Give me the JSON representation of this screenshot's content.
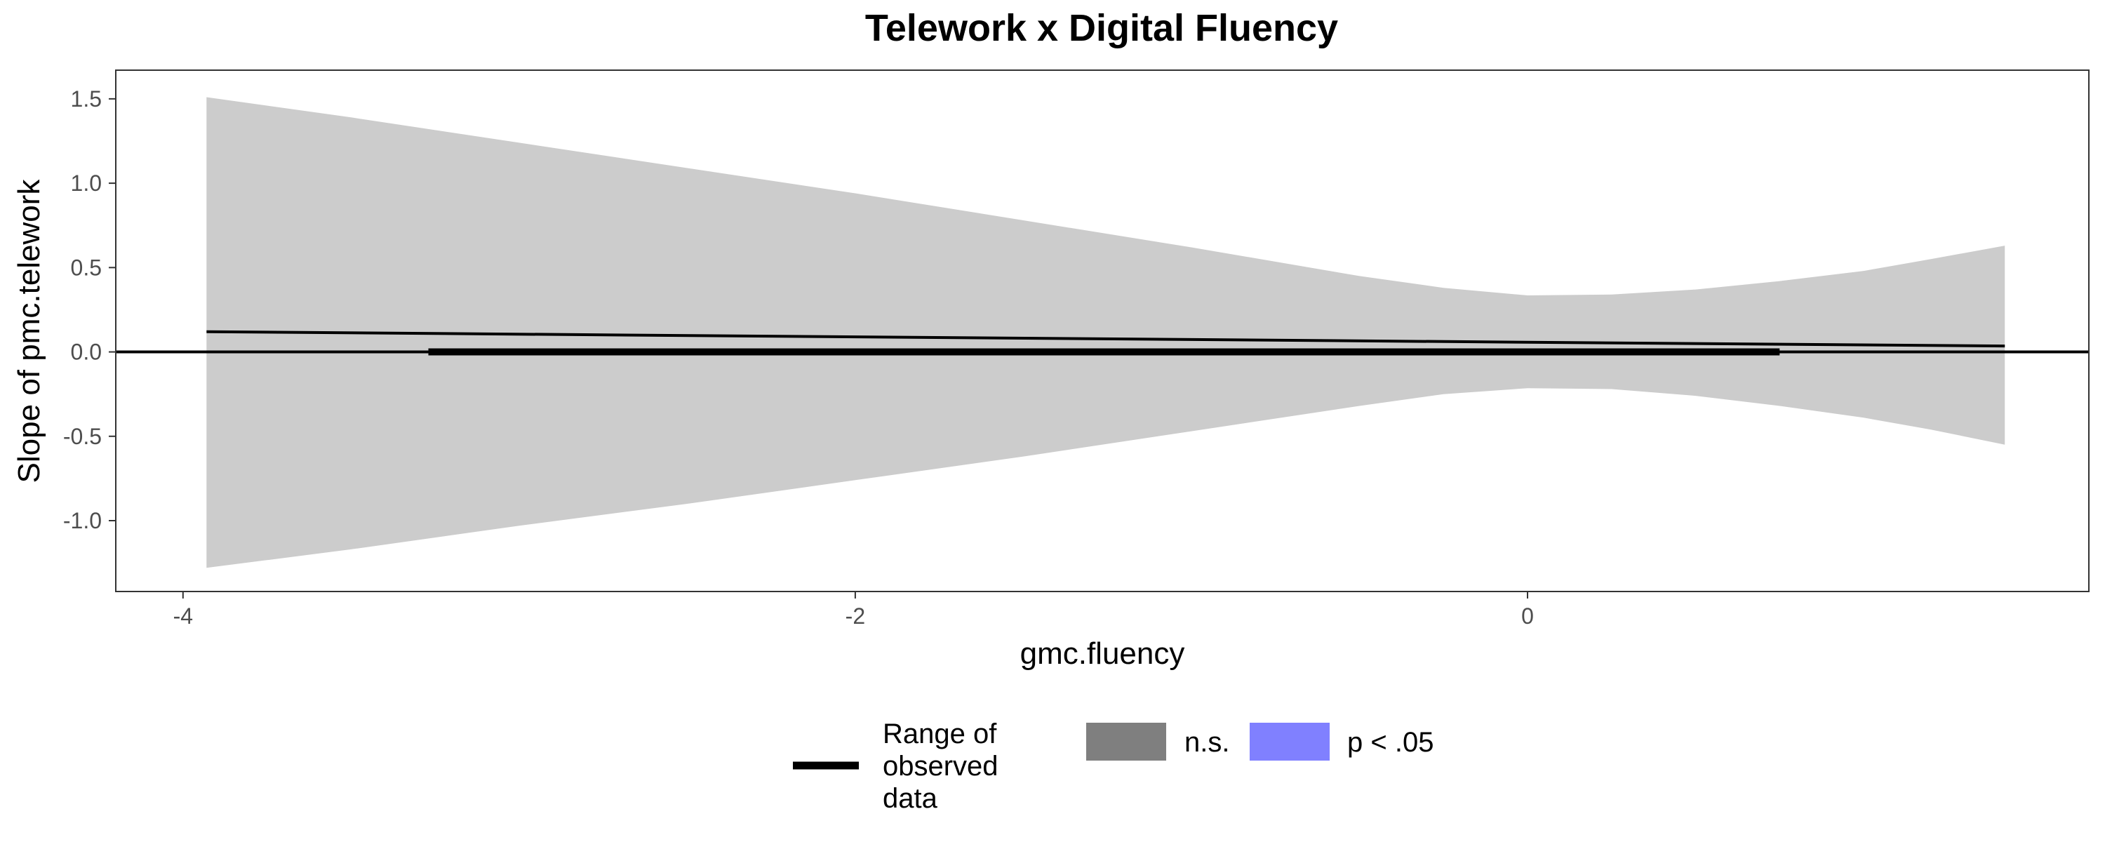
{
  "chart_data": {
    "type": "area",
    "title": "Telework x Digital Fluency",
    "xlabel": "gmc.fluency",
    "ylabel": "Slope of pmc.telework",
    "xlim": [
      -4.2,
      1.67
    ],
    "ylim": [
      -1.42,
      1.67
    ],
    "x_ticks": [
      -4,
      -2,
      0
    ],
    "x_tick_labels": [
      "-4",
      "-2",
      "0"
    ],
    "y_ticks": [
      -1.0,
      -0.5,
      0.0,
      0.5,
      1.0,
      1.5
    ],
    "y_tick_labels": [
      "-1.0",
      "-0.5",
      "0.0",
      "0.5",
      "1.0",
      "1.5"
    ],
    "grid": false,
    "reference_line_y": 0,
    "slope_line": {
      "x": [
        -3.93,
        1.42
      ],
      "y": [
        0.12,
        0.035
      ]
    },
    "confidence_band": {
      "x": [
        -3.93,
        -3.5,
        -3.0,
        -2.5,
        -2.0,
        -1.5,
        -1.0,
        -0.5,
        -0.25,
        0.0,
        0.25,
        0.5,
        0.75,
        1.0,
        1.2,
        1.42
      ],
      "upper": [
        1.51,
        1.39,
        1.24,
        1.09,
        0.94,
        0.78,
        0.62,
        0.45,
        0.38,
        0.335,
        0.34,
        0.37,
        0.42,
        0.48,
        0.55,
        0.63
      ],
      "lower": [
        -1.28,
        -1.17,
        -1.03,
        -0.9,
        -0.76,
        -0.62,
        -0.47,
        -0.32,
        -0.25,
        -0.215,
        -0.22,
        -0.26,
        -0.32,
        -0.39,
        -0.46,
        -0.55
      ]
    },
    "observed_range": [
      -3.27,
      0.75
    ],
    "legend": {
      "placement": "bottom",
      "range_label": [
        "Range of",
        "observed",
        "data"
      ],
      "items": [
        {
          "label": "n.s.",
          "color": "#7f7f7f"
        },
        {
          "label": "p < .05",
          "color": "#8080ff"
        }
      ]
    },
    "colors": {
      "band": "#cccccc",
      "line": "#000000",
      "axis": "#333333"
    }
  }
}
